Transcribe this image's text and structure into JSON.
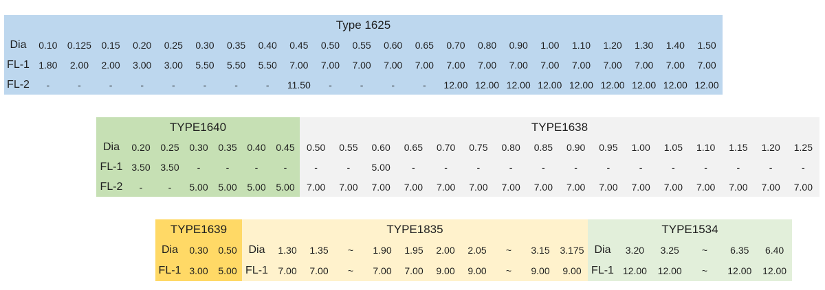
{
  "type1625": {
    "title": "Type 1625",
    "dia_label": "Dia",
    "fl1_label": "FL-1",
    "fl2_label": "FL-2",
    "dia": [
      "0.10",
      "0.125",
      "0.15",
      "0.20",
      "0.25",
      "0.30",
      "0.35",
      "0.40",
      "0.45",
      "0.50",
      "0.55",
      "0.60",
      "0.65",
      "0.70",
      "0.80",
      "0.90",
      "1.00",
      "1.10",
      "1.20",
      "1.30",
      "1.40",
      "1.50"
    ],
    "fl1": [
      "1.80",
      "2.00",
      "2.00",
      "3.00",
      "3.00",
      "5.50",
      "5.50",
      "5.50",
      "7.00",
      "7.00",
      "7.00",
      "7.00",
      "7.00",
      "7.00",
      "7.00",
      "7.00",
      "7.00",
      "7.00",
      "7.00",
      "7.00",
      "7.00",
      "7.00"
    ],
    "fl2": [
      "-",
      "-",
      "-",
      "-",
      "-",
      "-",
      "-",
      "-",
      "11.50",
      "-",
      "-",
      "-",
      "-",
      "12.00",
      "12.00",
      "12.00",
      "12.00",
      "12.00",
      "12.00",
      "12.00",
      "12.00",
      "12.00"
    ]
  },
  "type1640": {
    "title": "TYPE1640",
    "dia_label": "Dia",
    "fl1_label": "FL-1",
    "fl2_label": "FL-2",
    "dia": [
      "0.20",
      "0.25",
      "0.30",
      "0.35",
      "0.40",
      "0.45"
    ],
    "fl1": [
      "3.50",
      "3.50",
      "-",
      "-",
      "-",
      "-"
    ],
    "fl2": [
      "-",
      "-",
      "5.00",
      "5.00",
      "5.00",
      "5.00"
    ]
  },
  "type1638": {
    "title": "TYPE1638",
    "dia": [
      "0.50",
      "0.55",
      "0.60",
      "0.65",
      "0.70",
      "0.75",
      "0.80",
      "0.85",
      "0.90",
      "0.95",
      "1.00",
      "1.05",
      "1.10",
      "1.15",
      "1.20",
      "1.25"
    ],
    "fl1": [
      "-",
      "-",
      "5.00",
      "-",
      "-",
      "-",
      "-",
      "-",
      "-",
      "-",
      "-",
      "-",
      "-",
      "-",
      "-",
      "-"
    ],
    "fl2": [
      "7.00",
      "7.00",
      "7.00",
      "7.00",
      "7.00",
      "7.00",
      "7.00",
      "7.00",
      "7.00",
      "7.00",
      "7.00",
      "7.00",
      "7.00",
      "7.00",
      "7.00",
      "7.00"
    ]
  },
  "type1639": {
    "title": "TYPE1639",
    "dia_label": "Dia",
    "fl1_label": "FL-1",
    "dia": [
      "0.30",
      "0.50"
    ],
    "fl1": [
      "3.00",
      "5.00"
    ]
  },
  "type1835": {
    "title": "TYPE1835",
    "dia_label": "Dia",
    "fl1_label": "FL-1",
    "dia": [
      "1.30",
      "1.35",
      "~",
      "1.90",
      "1.95",
      "2.00",
      "2.05",
      "~",
      "3.15",
      "3.175"
    ],
    "fl1": [
      "7.00",
      "7.00",
      "~",
      "7.00",
      "7.00",
      "9.00",
      "9.00",
      "~",
      "9.00",
      "9.00"
    ]
  },
  "type1534": {
    "title": "TYPE1534",
    "dia_label": "Dia",
    "fl1_label": "FL-1",
    "dia": [
      "3.20",
      "3.25",
      "~",
      "6.35",
      "6.40"
    ],
    "fl1": [
      "12.00",
      "12.00",
      "~",
      "12.00",
      "12.00"
    ]
  },
  "colors": {
    "type1625": "#bdd7ee",
    "type1640": "#c6e0b4",
    "type1638": "#f2f2f2",
    "type1639": "#ffd966",
    "type1835": "#fff2cc",
    "type1534": "#e2efda"
  }
}
